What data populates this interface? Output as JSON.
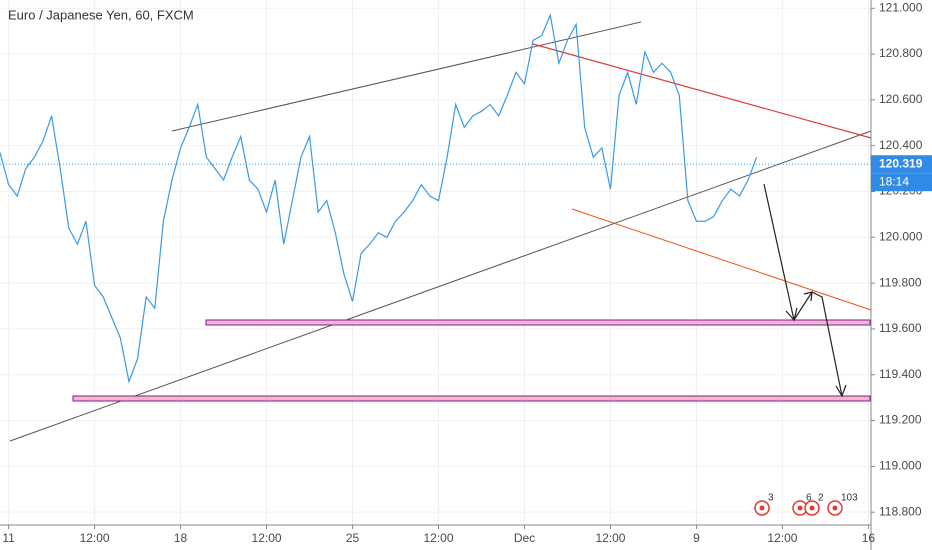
{
  "chart_data": {
    "type": "line",
    "title": "Euro / Japanese Yen, 60, FXCM",
    "series": [
      {
        "name": "EURJPY",
        "color": "#3a9ae6",
        "values": [
          120.37,
          120.23,
          120.18,
          120.3,
          120.35,
          120.42,
          120.53,
          120.3,
          120.04,
          119.97,
          120.07,
          119.79,
          119.74,
          119.65,
          119.56,
          119.37,
          119.47,
          119.74,
          119.69,
          120.07,
          120.25,
          120.39,
          120.48,
          120.58,
          120.35,
          120.3,
          120.25,
          120.35,
          120.44,
          120.25,
          120.21,
          120.11,
          120.25,
          119.97,
          120.16,
          120.35,
          120.44,
          120.11,
          120.16,
          120.02,
          119.84,
          119.72,
          119.93,
          119.97,
          120.02,
          120.0,
          120.07,
          120.11,
          120.16,
          120.23,
          120.18,
          120.16,
          120.35,
          120.58,
          120.48,
          120.53,
          120.55,
          120.58,
          120.53,
          120.62,
          120.72,
          120.67,
          120.86,
          120.88,
          120.97,
          120.76,
          120.86,
          120.93,
          120.48,
          120.35,
          120.39,
          120.21,
          120.62,
          120.72,
          120.58,
          120.81,
          120.72,
          120.76,
          120.72,
          120.62,
          120.16,
          120.07,
          120.07,
          120.09,
          120.16,
          120.21,
          120.18,
          120.25,
          120.35
        ]
      }
    ],
    "xlim": [
      0,
      101.3
    ],
    "xticks": [
      {
        "value": 1,
        "label": "11"
      },
      {
        "value": 11,
        "label": "12:00"
      },
      {
        "value": 21,
        "label": "18"
      },
      {
        "value": 31,
        "label": "12:00"
      },
      {
        "value": 41,
        "label": "25"
      },
      {
        "value": 51,
        "label": "12:00"
      },
      {
        "value": 61,
        "label": "Dec"
      },
      {
        "value": 71,
        "label": "12:00"
      },
      {
        "value": 81,
        "label": "9"
      },
      {
        "value": 91,
        "label": "12:00"
      },
      {
        "value": 101,
        "label": "16"
      }
    ],
    "ylim": [
      118.744,
      121.036
    ],
    "yticks": [
      {
        "value": 118.8,
        "label": "118.800"
      },
      {
        "value": 119.0,
        "label": "119.000"
      },
      {
        "value": 119.2,
        "label": "119.200"
      },
      {
        "value": 119.4,
        "label": "119.400"
      },
      {
        "value": 119.6,
        "label": "119.600"
      },
      {
        "value": 119.8,
        "label": "119.800"
      },
      {
        "value": 120.0,
        "label": "120.000"
      },
      {
        "value": 120.2,
        "label": "120.200"
      },
      {
        "value": 120.4,
        "label": "120.400"
      },
      {
        "value": 120.6,
        "label": "120.600"
      },
      {
        "value": 120.8,
        "label": "120.800"
      },
      {
        "value": 121.0,
        "label": "121.000"
      }
    ],
    "last_price": 120.319,
    "countdown": "18:14",
    "event_badges": [
      "3",
      "6",
      "2",
      "103"
    ],
    "grid": true
  }
}
